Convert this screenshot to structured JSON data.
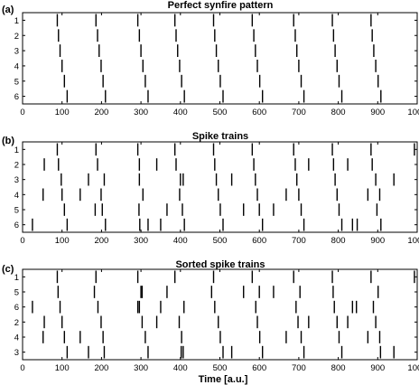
{
  "xlabel": "Time [a.u.]",
  "chart_data": [
    {
      "type": "raster",
      "letter": "(a)",
      "title": "Perfect synfire pattern",
      "xlim": [
        0,
        1000
      ],
      "xticks": [
        0,
        100,
        200,
        300,
        400,
        500,
        600,
        700,
        800,
        900,
        1000
      ],
      "row_labels": [
        "1",
        "2",
        "3",
        "4",
        "5",
        "6"
      ],
      "spikes": [
        [
          88,
          186,
          292,
          386,
          484,
          582,
          687,
          785,
          883
        ],
        [
          91,
          190,
          296,
          389,
          487,
          586,
          691,
          788,
          886
        ],
        [
          95,
          194,
          300,
          393,
          491,
          590,
          695,
          792,
          890
        ],
        [
          100,
          199,
          305,
          398,
          496,
          595,
          700,
          797,
          895
        ],
        [
          106,
          204,
          311,
          403,
          501,
          601,
          706,
          802,
          901
        ],
        [
          113,
          210,
          318,
          410,
          508,
          608,
          713,
          809,
          908
        ]
      ]
    },
    {
      "type": "raster",
      "letter": "(b)",
      "title": "Spike trains",
      "xlim": [
        0,
        1000
      ],
      "xticks": [
        0,
        100,
        200,
        300,
        400,
        500,
        600,
        700,
        800,
        900,
        1000
      ],
      "row_labels": [
        "1",
        "2",
        "3",
        "4",
        "5",
        "6"
      ],
      "spikes": [
        [
          88,
          186,
          292,
          386,
          484,
          582,
          687,
          785,
          883,
          993
        ],
        [
          55,
          91,
          190,
          296,
          340,
          389,
          487,
          586,
          691,
          725,
          788,
          824,
          886
        ],
        [
          98,
          167,
          207,
          296,
          400,
          407,
          491,
          530,
          590,
          695,
          792,
          895,
          941
        ],
        [
          52,
          100,
          146,
          199,
          305,
          398,
          496,
          595,
          668,
          700,
          797,
          875,
          905
        ],
        [
          106,
          184,
          202,
          295,
          366,
          405,
          501,
          560,
          600,
          636,
          706,
          802,
          898
        ],
        [
          25,
          113,
          210,
          297,
          318,
          350,
          410,
          508,
          608,
          713,
          809,
          836,
          848,
          908
        ]
      ]
    },
    {
      "type": "raster",
      "letter": "(c)",
      "title": "Sorted spike trains",
      "xlim": [
        0,
        1000
      ],
      "xticks": [
        0,
        100,
        200,
        300,
        400,
        500,
        600,
        700,
        800,
        900,
        1000
      ],
      "row_labels": [
        "1",
        "5",
        "6",
        "2",
        "4",
        "3"
      ],
      "spikes": [
        [
          88,
          186,
          292,
          386,
          484,
          582,
          687,
          785,
          883,
          993
        ],
        [
          90,
          182,
          300,
          303,
          366,
          479,
          560,
          600,
          636,
          703,
          787,
          901
        ],
        [
          25,
          95,
          191,
          292,
          296,
          350,
          409,
          487,
          591,
          693,
          790,
          836,
          846,
          889
        ],
        [
          55,
          100,
          199,
          303,
          340,
          397,
          496,
          595,
          698,
          725,
          797,
          824,
          895
        ],
        [
          52,
          106,
          146,
          204,
          311,
          403,
          501,
          601,
          668,
          706,
          802,
          875,
          905
        ],
        [
          113,
          167,
          207,
          318,
          402,
          407,
          508,
          530,
          608,
          713,
          809,
          907,
          941
        ]
      ]
    }
  ]
}
